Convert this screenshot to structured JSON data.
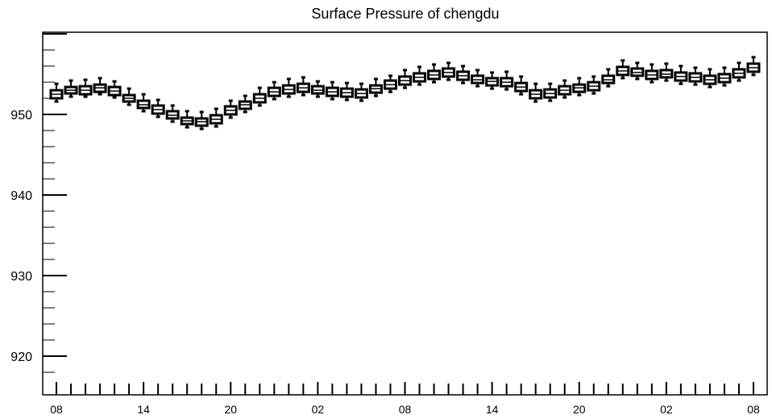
{
  "chart_data": {
    "type": "boxplot",
    "title": "Surface Pressure of chengdu",
    "xlabel": "",
    "ylabel": "",
    "ylim": [
      915.2,
      960.2
    ],
    "yticks": [
      920,
      930,
      940,
      950
    ],
    "xtick_labels": [
      "08",
      "14",
      "20",
      "02",
      "08",
      "14",
      "20",
      "02",
      "08"
    ],
    "xtick_positions": [
      0,
      6,
      12,
      18,
      24,
      30,
      36,
      42,
      48
    ],
    "grid": false,
    "series": [
      {
        "x": [
          0,
          1,
          2,
          3,
          4,
          5,
          6,
          7,
          8,
          9,
          10,
          11,
          12,
          13,
          14,
          15,
          16,
          17,
          18,
          19,
          20,
          21,
          22,
          23,
          24,
          25,
          26,
          27,
          28,
          29,
          30,
          31,
          32,
          33,
          34,
          35,
          36,
          37,
          38,
          39,
          40,
          41,
          42,
          43,
          44,
          45,
          46,
          47,
          48
        ],
        "median": [
          952.5,
          953.0,
          953.0,
          953.3,
          952.9,
          952.0,
          951.2,
          950.6,
          949.9,
          949.2,
          949.1,
          949.4,
          950.5,
          951.2,
          952.0,
          952.8,
          953.1,
          953.3,
          953.0,
          952.8,
          952.7,
          952.6,
          953.2,
          953.7,
          954.2,
          954.6,
          954.9,
          955.2,
          954.8,
          954.3,
          954.1,
          954.0,
          953.4,
          952.5,
          952.6,
          953.0,
          953.3,
          953.5,
          954.3,
          955.4,
          955.2,
          954.9,
          955.0,
          954.7,
          954.6,
          954.3,
          954.5,
          955.1,
          955.8
        ],
        "q1": [
          952.0,
          952.6,
          952.5,
          952.8,
          952.4,
          951.6,
          950.8,
          950.1,
          949.5,
          948.8,
          948.6,
          948.9,
          950.0,
          950.7,
          951.5,
          952.3,
          952.6,
          952.8,
          952.6,
          952.3,
          952.2,
          952.1,
          952.7,
          953.2,
          953.7,
          954.1,
          954.4,
          954.7,
          954.3,
          953.9,
          953.6,
          953.5,
          952.9,
          952.0,
          952.1,
          952.5,
          952.8,
          953.0,
          953.9,
          954.9,
          954.8,
          954.4,
          954.6,
          954.2,
          954.1,
          953.8,
          954.0,
          954.6,
          955.3
        ],
        "q3": [
          953.0,
          953.4,
          953.5,
          953.7,
          953.4,
          952.4,
          951.7,
          951.1,
          950.4,
          949.6,
          949.5,
          949.9,
          951.0,
          951.6,
          952.5,
          953.3,
          953.6,
          953.8,
          953.5,
          953.3,
          953.2,
          953.1,
          953.6,
          954.2,
          954.7,
          955.1,
          955.4,
          955.7,
          955.3,
          954.8,
          954.5,
          954.5,
          953.9,
          953.0,
          953.1,
          953.5,
          953.7,
          954.0,
          954.8,
          955.9,
          955.7,
          955.4,
          955.5,
          955.2,
          955.1,
          954.8,
          955.0,
          955.6,
          956.3
        ],
        "whisker_low": [
          951.6,
          952.2,
          952.2,
          952.5,
          952.1,
          951.2,
          950.4,
          949.7,
          949.1,
          948.4,
          948.2,
          948.5,
          949.6,
          950.3,
          951.1,
          951.9,
          952.2,
          952.4,
          952.2,
          951.9,
          951.8,
          951.7,
          952.3,
          952.8,
          953.3,
          953.7,
          954.0,
          954.3,
          953.9,
          953.5,
          953.2,
          953.1,
          952.5,
          951.6,
          951.7,
          952.1,
          952.4,
          952.6,
          953.5,
          954.5,
          954.4,
          954.0,
          954.2,
          953.8,
          953.7,
          953.4,
          953.6,
          954.2,
          954.9
        ],
        "whisker_high": [
          953.8,
          954.2,
          954.3,
          954.5,
          954.1,
          953.2,
          952.5,
          951.8,
          951.1,
          950.4,
          950.3,
          950.7,
          951.7,
          952.3,
          953.3,
          954.0,
          954.4,
          954.6,
          954.1,
          954.0,
          953.9,
          953.8,
          954.4,
          954.8,
          955.5,
          955.9,
          956.2,
          956.4,
          956.0,
          955.5,
          955.2,
          955.3,
          954.7,
          953.8,
          953.8,
          954.2,
          954.5,
          954.7,
          955.6,
          956.7,
          956.4,
          956.2,
          956.3,
          956.0,
          955.8,
          955.6,
          955.8,
          956.4,
          957.1
        ]
      }
    ]
  },
  "colors": {
    "background": "#ffffff",
    "axis": "#000000",
    "box_fill": "#ffffff",
    "box_stroke": "#000000"
  }
}
